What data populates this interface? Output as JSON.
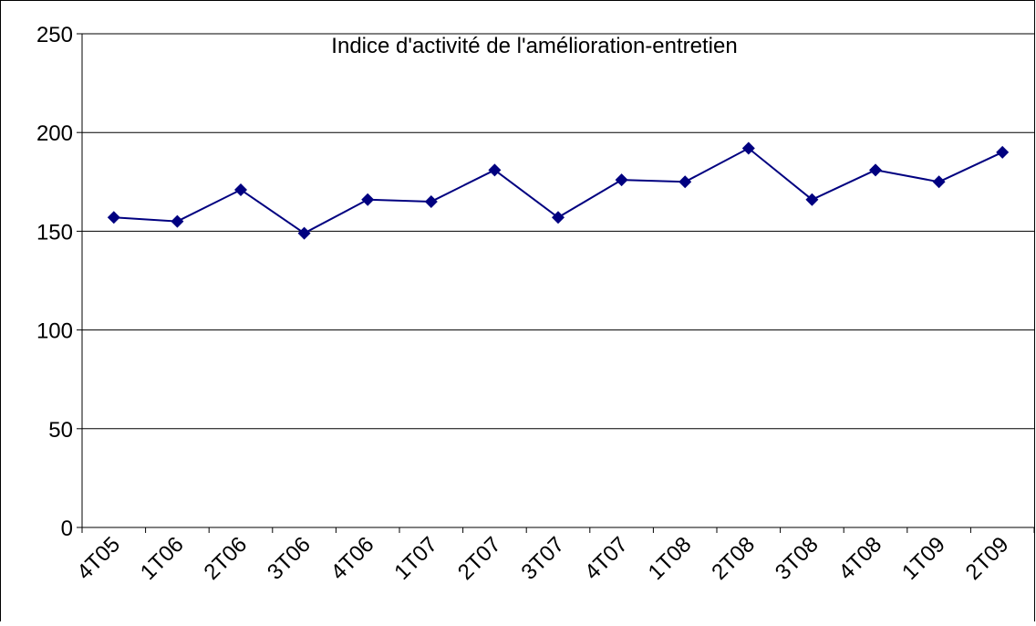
{
  "chart_data": {
    "type": "line",
    "title": "Indice d'activité de l'amélioration-entretien",
    "categories": [
      "4T05",
      "1T06",
      "2T06",
      "3T06",
      "4T06",
      "1T07",
      "2T07",
      "3T07",
      "4T07",
      "1T08",
      "2T08",
      "3T08",
      "4T08",
      "1T09",
      "2T09"
    ],
    "series": [
      {
        "color": "#000080",
        "values": [
          157,
          155,
          171,
          149,
          166,
          165,
          181,
          157,
          176,
          175,
          192,
          166,
          181,
          175,
          190
        ]
      }
    ],
    "ylim": [
      0,
      250
    ],
    "yticks": [
      0,
      50,
      100,
      150,
      200,
      250
    ],
    "grid": true
  }
}
